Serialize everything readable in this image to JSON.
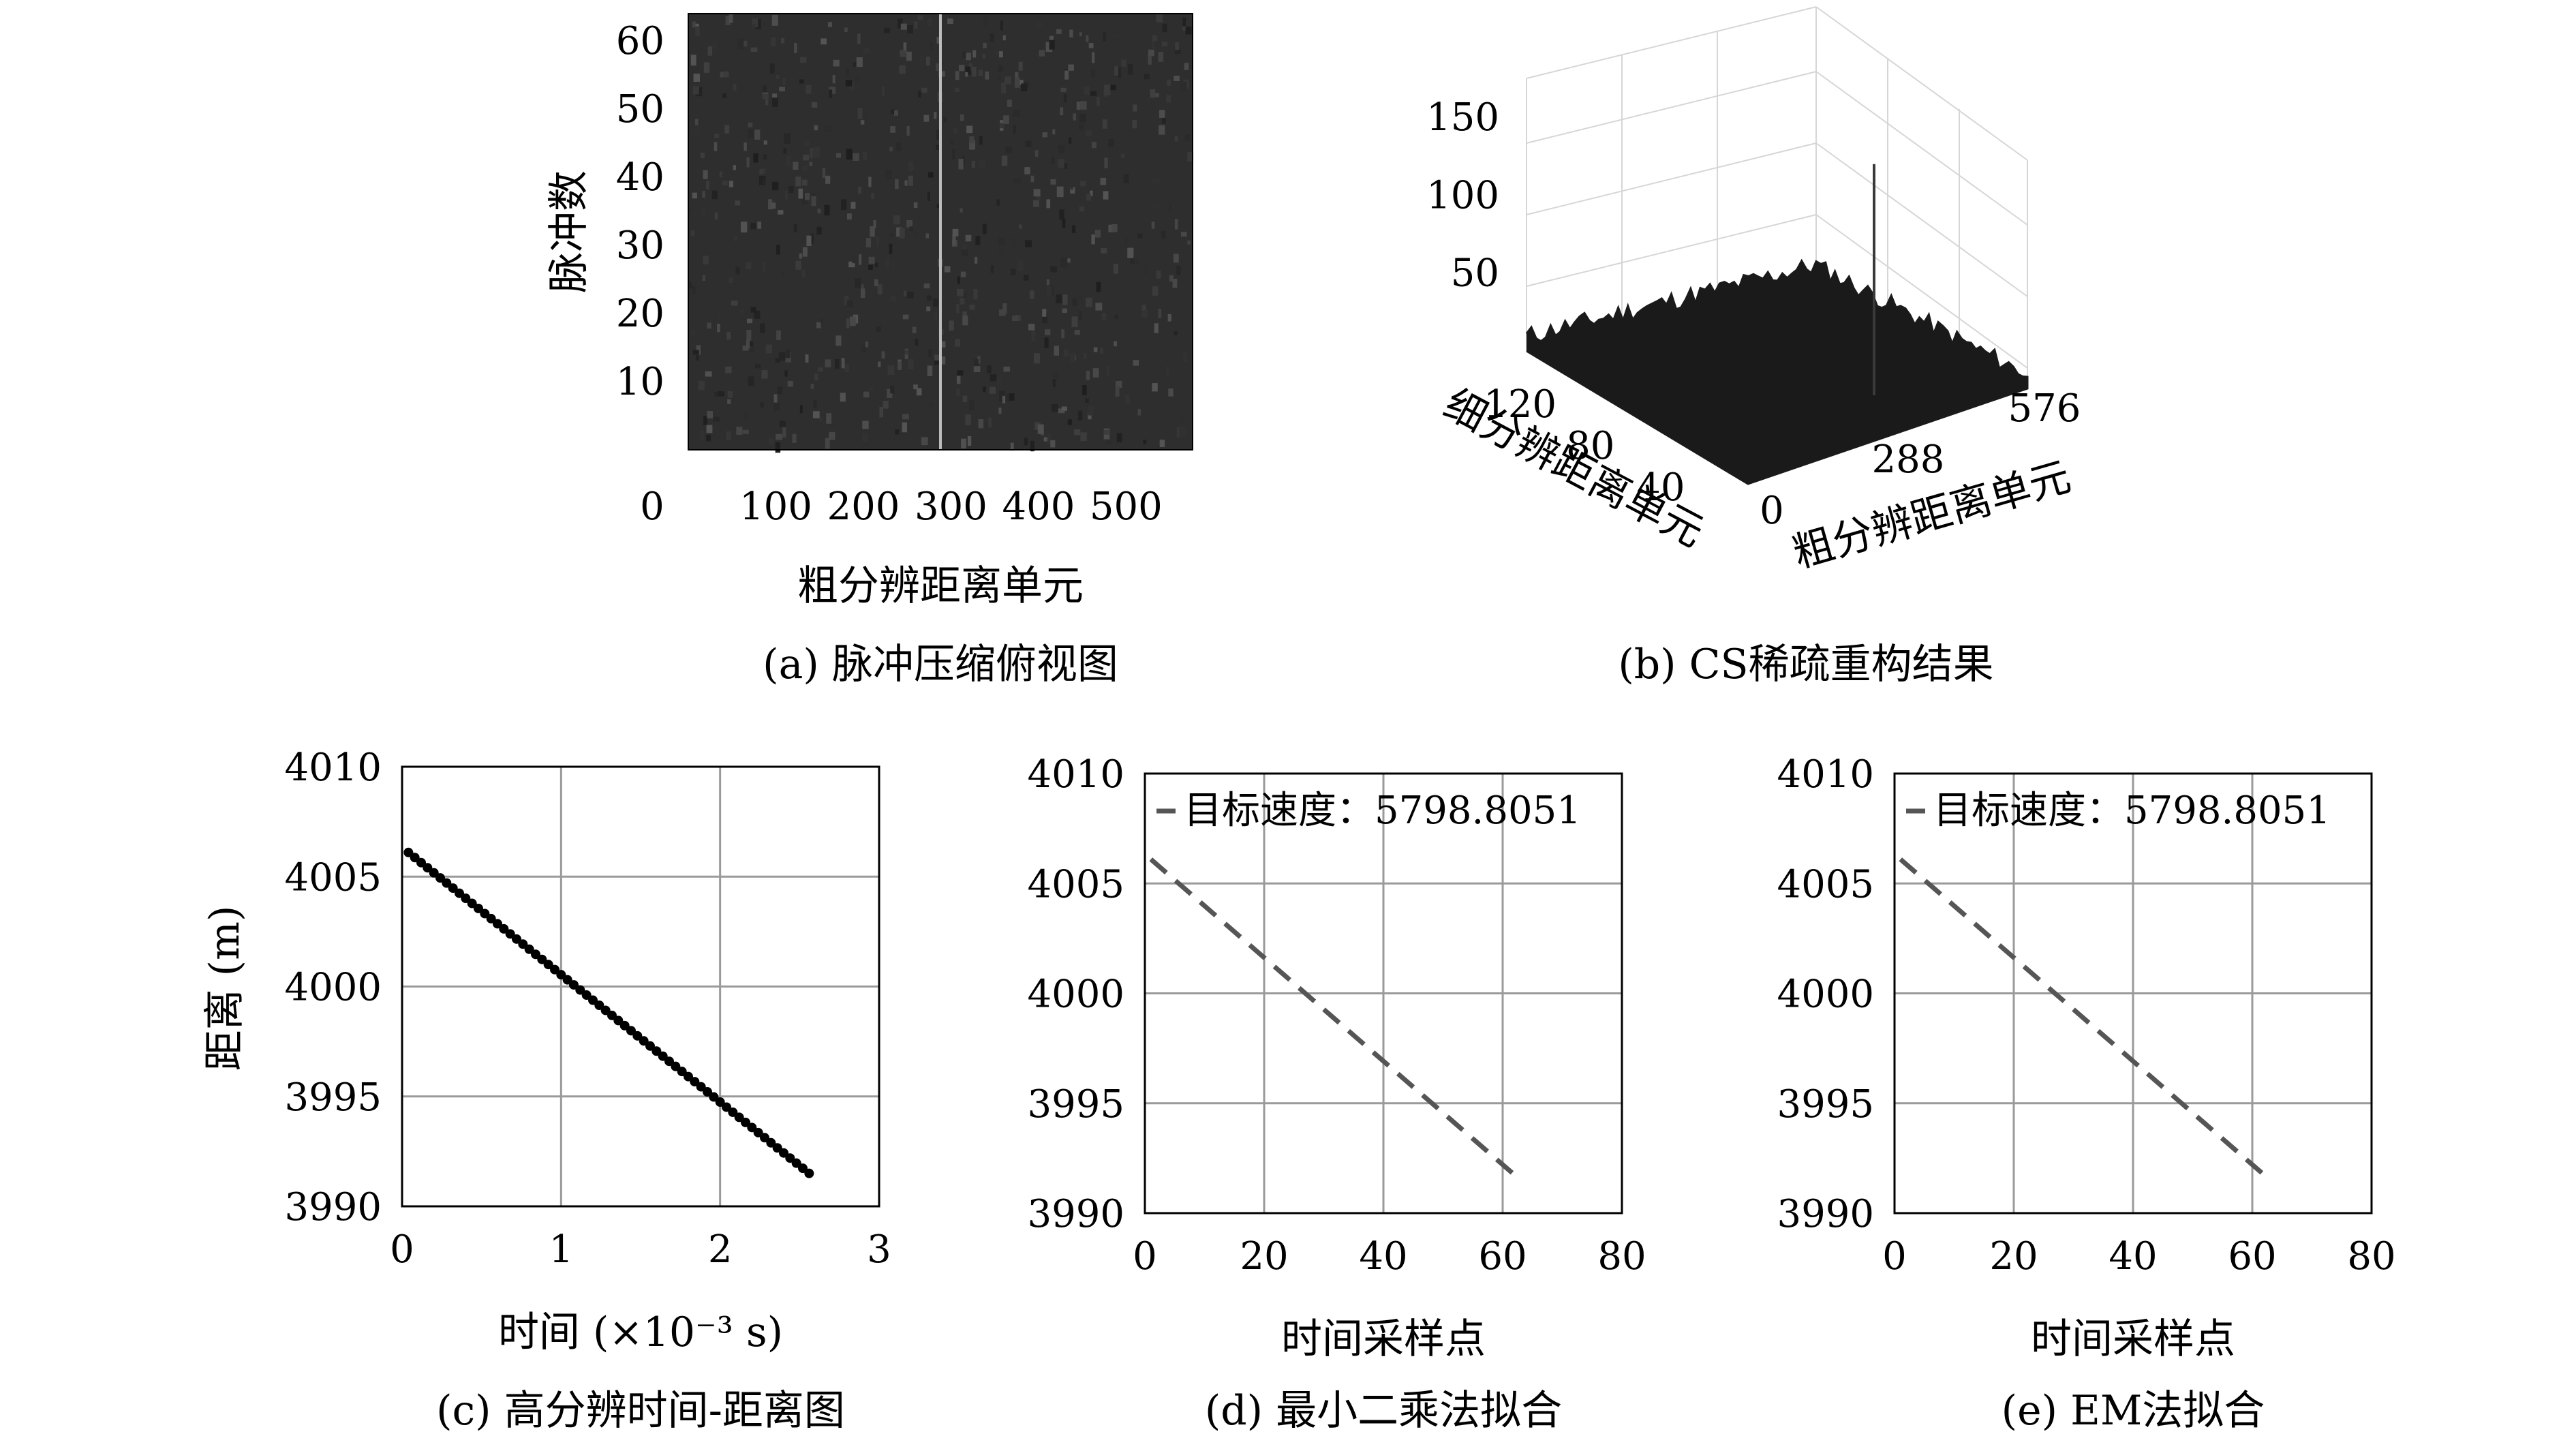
{
  "chart_data": [
    {
      "id": "a",
      "type": "heatmap",
      "caption": "(a) 脉冲压缩俯视图",
      "xlabel": "粗分辨距离单元",
      "ylabel": "脉冲数",
      "xlim": [
        0,
        576
      ],
      "ylim": [
        0,
        64
      ],
      "xticks": [
        0,
        100,
        200,
        300,
        400,
        500
      ],
      "yticks": [
        10,
        20,
        30,
        40,
        50,
        60
      ],
      "highlight_column": 288,
      "colors": {
        "background": "#2e2e2e",
        "highlight": "#bdbdbd"
      }
    },
    {
      "id": "b",
      "type": "surface3d",
      "caption": "(b) CS稀疏重构结果",
      "xlabel": "粗分辨距离单元",
      "ylabel": "细分辨距离单元",
      "xticks": [
        0,
        288,
        576
      ],
      "yticks": [
        40,
        80,
        120
      ],
      "zticks": [
        50,
        100,
        150
      ],
      "zlim": [
        0,
        175
      ],
      "peak": {
        "x": 288,
        "z": 120
      },
      "colors": {
        "surface": "#1a1a1a"
      }
    },
    {
      "id": "c",
      "type": "scatter",
      "caption": "(c) 高分辨时间-距离图",
      "xlabel": "时间 (×10⁻³ s)",
      "ylabel": "距离 (m)",
      "xlim": [
        0,
        3
      ],
      "ylim": [
        3990,
        4010
      ],
      "xticks": [
        0,
        1,
        2,
        3
      ],
      "yticks": [
        3990,
        3995,
        4000,
        4005,
        4010
      ],
      "grid": true,
      "x_start": 0.04,
      "x_end": 2.56,
      "y_start": 4006.1,
      "y_end": 3991.5,
      "n_points": 64
    },
    {
      "id": "d",
      "type": "line",
      "caption": "(d) 最小二乘法拟合",
      "xlabel": "时间采样点",
      "ylabel": "",
      "xlim": [
        0,
        80
      ],
      "ylim": [
        3990,
        4010
      ],
      "xticks": [
        0,
        20,
        40,
        60,
        80
      ],
      "yticks": [
        3990,
        3995,
        4000,
        4005,
        4010
      ],
      "grid": true,
      "legend": "目标速度：5798.8051",
      "legend_position": "top-left",
      "x": [
        1,
        63
      ],
      "y": [
        4006.1,
        3991.5
      ]
    },
    {
      "id": "e",
      "type": "line",
      "caption": "(e) EM法拟合",
      "xlabel": "时间采样点",
      "ylabel": "",
      "xlim": [
        0,
        80
      ],
      "ylim": [
        3990,
        4010
      ],
      "xticks": [
        0,
        20,
        40,
        60,
        80
      ],
      "yticks": [
        3990,
        3995,
        4000,
        4005,
        4010
      ],
      "grid": true,
      "legend": "目标速度：5798.8051",
      "legend_position": "top-left",
      "x": [
        1,
        63
      ],
      "y": [
        4006.1,
        3991.5
      ]
    }
  ]
}
